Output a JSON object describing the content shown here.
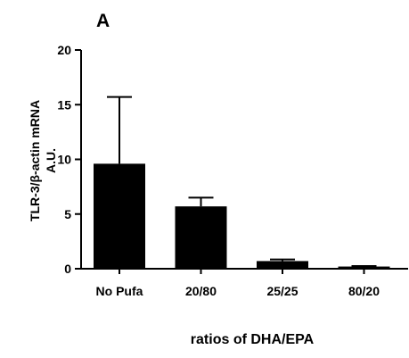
{
  "chart_data": {
    "type": "bar",
    "panel_label": "A",
    "categories": [
      "No Pufa",
      "20/80",
      "25/25",
      "80/20"
    ],
    "values": [
      9.6,
      5.7,
      0.7,
      0.2
    ],
    "error_upper": [
      15.7,
      6.5,
      0.85,
      0.25
    ],
    "xlabel": "ratios of DHA/EPA",
    "ylabel_line1": "TLR-3/β-actin mRNA",
    "ylabel_line2": "A.U.",
    "ylim": [
      0,
      20
    ],
    "yticks": [
      0,
      5,
      10,
      15,
      20
    ],
    "grid": false,
    "legend": "none",
    "bar_color": "#000000"
  }
}
